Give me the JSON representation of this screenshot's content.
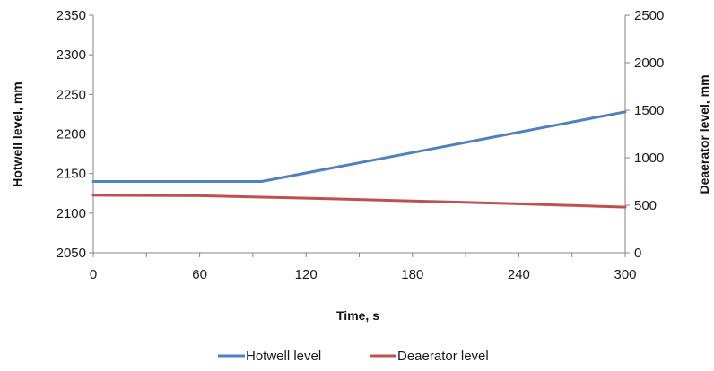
{
  "chart_data": {
    "type": "line",
    "xlabel": "Time, s",
    "ylabel": "Hotwell level, mm",
    "y2label": "Deaerator level, mm",
    "xlim": [
      0,
      300
    ],
    "ylim": [
      2050,
      2350
    ],
    "y2lim": [
      0,
      2500
    ],
    "xticks": [
      "0",
      "60",
      "120",
      "180",
      "240",
      "300"
    ],
    "yticks": [
      "2050",
      "2100",
      "2150",
      "2200",
      "2250",
      "2300",
      "2350"
    ],
    "y2ticks": [
      "0",
      "500",
      "1000",
      "1500",
      "2000",
      "2500"
    ],
    "grid": false,
    "legend_position": "bottom",
    "series": [
      {
        "name": "Hotwell level",
        "axis": "left",
        "color": "#4f81bd",
        "x": [
          0,
          95,
          300
        ],
        "y": [
          2140,
          2140,
          2228
        ]
      },
      {
        "name": "Deaerator level",
        "axis": "right",
        "color": "#c0504d",
        "x": [
          0,
          60,
          120,
          180,
          240,
          300
        ],
        "y": [
          605,
          600,
          575,
          545,
          515,
          480
        ]
      }
    ]
  }
}
